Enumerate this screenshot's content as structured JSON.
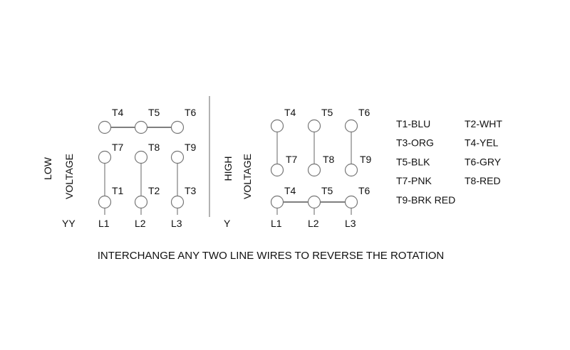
{
  "low": {
    "title1": "LOW",
    "title2": "VOLTAGE",
    "config": "YY",
    "top": [
      "T4",
      "T5",
      "T6"
    ],
    "mid": [
      "T7",
      "T8",
      "T9"
    ],
    "bot": [
      "T1",
      "T2",
      "T3"
    ],
    "lines": [
      "L1",
      "L2",
      "L3"
    ]
  },
  "high": {
    "title1": "HIGH",
    "title2": "VOLTAGE",
    "config": "Y",
    "top": [
      "T4",
      "T5",
      "T6"
    ],
    "mid": [
      "T7",
      "T8",
      "T9"
    ],
    "bot": [
      "T4",
      "T5",
      "T6"
    ],
    "lines": [
      "L1",
      "L2",
      "L3"
    ]
  },
  "legend": [
    [
      "T1-BLU",
      "T2-WHT"
    ],
    [
      "T3-ORG",
      "T4-YEL"
    ],
    [
      "T5-BLK",
      "T6-GRY"
    ],
    [
      "T7-PNK",
      "T8-RED"
    ],
    [
      "T9-BRK RED",
      ""
    ]
  ],
  "note": "INTERCHANGE ANY TWO LINE WIRES TO REVERSE THE ROTATION"
}
